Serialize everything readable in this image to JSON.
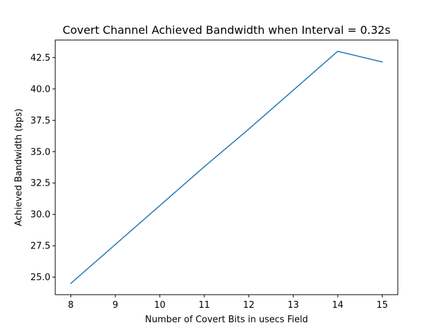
{
  "chart_data": {
    "type": "line",
    "title": "Covert Channel Achieved Bandwidth when Interval = 0.32s",
    "xlabel": "Number of Covert Bits in usecs Field",
    "ylabel": "Achieved Bandwidth (bps)",
    "x": [
      8,
      9,
      10,
      11,
      12,
      13,
      14,
      15
    ],
    "series": [
      {
        "values": [
          24.5,
          27.6,
          30.7,
          33.8,
          36.8,
          39.9,
          43.0,
          42.15
        ],
        "color": "#1f77b4"
      }
    ],
    "xlim": [
      7.65,
      15.35
    ],
    "ylim": [
      23.6,
      43.9
    ],
    "xticks": [
      "8",
      "9",
      "10",
      "11",
      "12",
      "13",
      "14",
      "15"
    ],
    "yticks": [
      "25.0",
      "27.5",
      "30.0",
      "32.5",
      "35.0",
      "37.5",
      "40.0",
      "42.5"
    ],
    "grid": false,
    "legend": "none"
  }
}
